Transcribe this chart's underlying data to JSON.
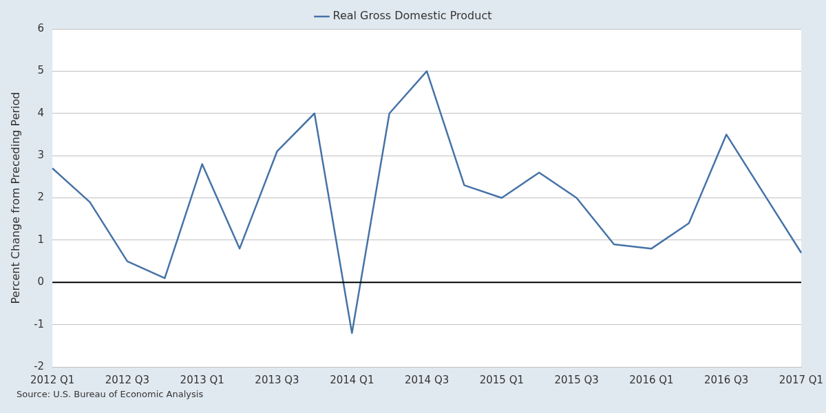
{
  "chart_data": {
    "type": "line",
    "ylabel": "Percent Change from Preceding Period",
    "categories": [
      "2012 Q1",
      null,
      "2012 Q3",
      null,
      "2013 Q1",
      null,
      "2013 Q3",
      null,
      "2014 Q1",
      null,
      "2014 Q3",
      null,
      "2015 Q1",
      null,
      "2015 Q3",
      null,
      "2016 Q1",
      null,
      "2016 Q3",
      null,
      "2017 Q1"
    ],
    "series": [
      {
        "name": "Real Gross Domestic Product",
        "color": "#4572a7",
        "values": [
          2.7,
          1.9,
          0.5,
          0.1,
          2.8,
          0.8,
          3.1,
          4.0,
          -1.2,
          4.0,
          5.0,
          2.3,
          2.0,
          2.6,
          2.0,
          0.9,
          0.8,
          1.4,
          3.5,
          2.1,
          0.7
        ]
      }
    ],
    "ylim": [
      -2,
      6
    ],
    "yticks": [
      -2,
      -1,
      0,
      1,
      2,
      3,
      4,
      5,
      6
    ],
    "ref_lines": [
      {
        "axis": "y",
        "value": 0,
        "color": "#000000"
      }
    ],
    "grid": "y",
    "legend": "top",
    "marker": "none",
    "line_style": "solid",
    "annotations": [
      "Source: U.S. Bureau of Economic Analysis"
    ]
  }
}
